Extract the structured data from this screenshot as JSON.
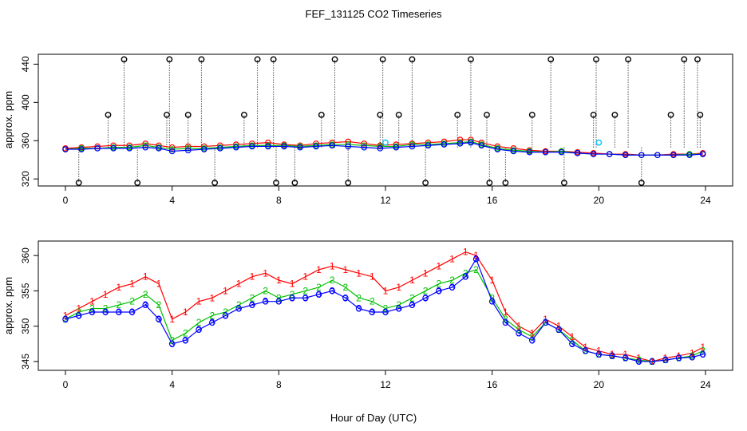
{
  "title": "FEF_131125  CO2 Timeseries",
  "xlabel": "Hour of Day (UTC)",
  "colors": {
    "line1": "#ff0000",
    "line2": "#00c000",
    "line3": "#0000ff",
    "flag": "#000000",
    "cyan": "#00c0ff"
  },
  "chart_data": [
    {
      "type": "scatter",
      "panel": "top",
      "ylabel": "approx. ppm",
      "xlim": [
        0,
        24
      ],
      "ylim": [
        320,
        440
      ],
      "x_ticks": [
        "0",
        "4",
        "8",
        "12",
        "16",
        "20",
        "24"
      ],
      "y_ticks": [
        "320",
        "360",
        "400",
        "440"
      ],
      "series": [
        {
          "key": "level1",
          "x": [
            0.0,
            0.6,
            1.2,
            1.8,
            2.4,
            3.0,
            3.5,
            4.0,
            4.6,
            5.2,
            5.8,
            6.4,
            7.0,
            7.6,
            8.2,
            8.8,
            9.4,
            10.0,
            10.6,
            11.2,
            11.8,
            12.4,
            13.0,
            13.6,
            14.2,
            14.8,
            15.2,
            15.6,
            16.2,
            16.8,
            17.4,
            18.0,
            18.6,
            19.2,
            19.8,
            20.4,
            21.0,
            21.6,
            22.2,
            22.8,
            23.4,
            23.9
          ],
          "y": [
            352,
            353,
            354,
            355,
            355,
            357,
            355,
            353,
            354,
            354,
            355,
            356,
            357,
            358,
            356,
            355,
            357,
            358,
            359,
            357,
            355,
            356,
            357,
            358,
            359,
            361,
            361,
            358,
            354,
            352,
            350,
            349,
            349,
            348,
            347,
            346,
            346,
            345,
            345,
            346,
            346,
            347
          ]
        },
        {
          "key": "level2",
          "x": [
            0.0,
            0.6,
            1.2,
            1.8,
            2.4,
            3.0,
            3.5,
            4.0,
            4.6,
            5.2,
            5.8,
            6.4,
            7.0,
            7.6,
            8.2,
            8.8,
            9.4,
            10.0,
            10.6,
            11.2,
            11.8,
            12.4,
            13.0,
            13.6,
            14.2,
            14.8,
            15.2,
            15.6,
            16.2,
            16.8,
            17.4,
            18.0,
            18.6,
            19.2,
            19.8,
            20.4,
            21.0,
            21.6,
            22.2,
            22.8,
            23.4,
            23.9
          ],
          "y": [
            351,
            352,
            352,
            353,
            353,
            355,
            353,
            351,
            352,
            352,
            353,
            354,
            355,
            355,
            355,
            354,
            355,
            356,
            356,
            355,
            354,
            354,
            356,
            356,
            357,
            358,
            359,
            356,
            352,
            350,
            349,
            348,
            349,
            347,
            346,
            346,
            345,
            345,
            345,
            345,
            346,
            346
          ]
        },
        {
          "key": "level3",
          "x": [
            0.0,
            0.6,
            1.2,
            1.8,
            2.4,
            3.0,
            3.5,
            4.0,
            4.6,
            5.2,
            5.8,
            6.4,
            7.0,
            7.6,
            8.2,
            8.8,
            9.4,
            10.0,
            10.6,
            11.2,
            11.8,
            12.4,
            13.0,
            13.6,
            14.2,
            14.8,
            15.2,
            15.6,
            16.2,
            16.8,
            17.4,
            18.0,
            18.6,
            19.2,
            19.8,
            20.4,
            21.0,
            21.6,
            22.2,
            22.8,
            23.4,
            23.9
          ],
          "y": [
            351,
            351,
            352,
            352,
            352,
            353,
            352,
            349,
            350,
            351,
            352,
            353,
            354,
            354,
            354,
            353,
            354,
            355,
            354,
            353,
            352,
            353,
            354,
            355,
            356,
            357,
            358,
            355,
            351,
            349,
            348,
            348,
            348,
            347,
            346,
            346,
            345,
            345,
            345,
            345,
            345,
            346
          ]
        }
      ],
      "flags": {
        "x": [
          0.5,
          1.6,
          2.2,
          2.7,
          3.8,
          3.9,
          4.6,
          5.1,
          5.6,
          6.7,
          7.2,
          7.8,
          7.9,
          8.6,
          9.6,
          10.1,
          10.6,
          11.8,
          11.9,
          12.5,
          13.0,
          13.5,
          14.7,
          15.2,
          15.8,
          15.9,
          16.5,
          17.5,
          18.2,
          18.7,
          19.8,
          19.9,
          20.6,
          21.1,
          21.6,
          22.7,
          23.2,
          23.7,
          23.8
        ],
        "y": [
          316,
          387,
          445,
          316,
          387,
          445,
          387,
          445,
          316,
          387,
          445,
          445,
          316,
          316,
          387,
          445,
          316,
          387,
          445,
          387,
          445,
          316,
          387,
          445,
          387,
          316,
          316,
          387,
          445,
          316,
          387,
          445,
          387,
          445,
          316,
          387,
          445,
          445,
          387
        ]
      },
      "cyan_points": {
        "x": [
          12.0,
          20.0
        ],
        "y": [
          358,
          358
        ]
      }
    },
    {
      "type": "line",
      "panel": "bottom",
      "ylabel": "approx. ppm",
      "xlim": [
        0,
        24
      ],
      "ylim": [
        345,
        360
      ],
      "x_ticks": [
        "0",
        "4",
        "8",
        "12",
        "16",
        "20",
        "24"
      ],
      "y_ticks": [
        "345",
        "350",
        "355",
        "360"
      ],
      "series": [
        {
          "key": "level1",
          "x": [
            0.0,
            0.5,
            1.0,
            1.5,
            2.0,
            2.5,
            3.0,
            3.5,
            4.0,
            4.5,
            5.0,
            5.5,
            6.0,
            6.5,
            7.0,
            7.5,
            8.0,
            8.5,
            9.0,
            9.5,
            10.0,
            10.5,
            11.0,
            11.5,
            12.0,
            12.5,
            13.0,
            13.5,
            14.0,
            14.5,
            15.0,
            15.4,
            16.0,
            16.5,
            17.0,
            17.5,
            18.0,
            18.5,
            19.0,
            19.5,
            20.0,
            20.5,
            21.0,
            21.5,
            22.0,
            22.5,
            23.0,
            23.5,
            23.9
          ],
          "y": [
            351.5,
            352.5,
            353.5,
            354.5,
            355.5,
            356.0,
            357.0,
            356.0,
            351.0,
            352.0,
            353.5,
            354.0,
            355.0,
            356.0,
            357.0,
            357.5,
            356.5,
            356.0,
            357.0,
            358.0,
            358.5,
            358.0,
            357.5,
            357.0,
            355.0,
            355.5,
            356.5,
            357.5,
            358.5,
            359.5,
            360.5,
            360.0,
            356.5,
            352.0,
            350.0,
            349.0,
            351.0,
            350.0,
            348.5,
            347.0,
            346.5,
            346.0,
            346.0,
            345.5,
            345.0,
            345.5,
            345.8,
            346.2,
            347.0
          ]
        },
        {
          "key": "level2",
          "x": [
            0.0,
            0.5,
            1.0,
            1.5,
            2.0,
            2.5,
            3.0,
            3.5,
            4.0,
            4.5,
            5.0,
            5.5,
            6.0,
            6.5,
            7.0,
            7.5,
            8.0,
            8.5,
            9.0,
            9.5,
            10.0,
            10.5,
            11.0,
            11.5,
            12.0,
            12.5,
            13.0,
            13.5,
            14.0,
            14.5,
            15.0,
            15.4,
            16.0,
            16.5,
            17.0,
            17.5,
            18.0,
            18.5,
            19.0,
            19.5,
            20.0,
            20.5,
            21.0,
            21.5,
            22.0,
            22.5,
            23.0,
            23.5,
            23.9
          ],
          "y": [
            351.0,
            352.0,
            352.5,
            352.5,
            353.0,
            353.5,
            354.5,
            353.0,
            348.0,
            349.0,
            350.5,
            351.5,
            352.0,
            353.0,
            354.0,
            355.0,
            354.0,
            354.5,
            355.0,
            355.5,
            356.5,
            355.5,
            354.0,
            353.5,
            352.5,
            353.0,
            354.0,
            355.0,
            356.0,
            356.5,
            357.5,
            358.0,
            354.0,
            351.0,
            349.5,
            348.5,
            350.5,
            349.5,
            348.0,
            346.5,
            346.0,
            345.8,
            345.5,
            345.2,
            345.0,
            345.2,
            345.5,
            345.8,
            346.5
          ]
        },
        {
          "key": "level3",
          "x": [
            0.0,
            0.5,
            1.0,
            1.5,
            2.0,
            2.5,
            3.0,
            3.5,
            4.0,
            4.5,
            5.0,
            5.5,
            6.0,
            6.5,
            7.0,
            7.5,
            8.0,
            8.5,
            9.0,
            9.5,
            10.0,
            10.5,
            11.0,
            11.5,
            12.0,
            12.5,
            13.0,
            13.5,
            14.0,
            14.5,
            15.0,
            15.4,
            16.0,
            16.5,
            17.0,
            17.5,
            18.0,
            18.5,
            19.0,
            19.5,
            20.0,
            20.5,
            21.0,
            21.5,
            22.0,
            22.5,
            23.0,
            23.5,
            23.9
          ],
          "y": [
            351.0,
            351.5,
            352.0,
            352.0,
            352.0,
            352.0,
            353.0,
            351.0,
            347.5,
            348.0,
            349.5,
            350.5,
            351.5,
            352.5,
            353.0,
            353.5,
            353.5,
            354.0,
            354.0,
            354.5,
            355.0,
            354.0,
            352.5,
            352.0,
            352.0,
            352.5,
            353.0,
            354.0,
            355.0,
            355.5,
            357.0,
            359.5,
            353.5,
            350.5,
            349.0,
            348.0,
            350.5,
            349.5,
            347.5,
            346.5,
            346.0,
            345.8,
            345.5,
            345.0,
            345.0,
            345.2,
            345.5,
            345.6,
            346.0
          ]
        }
      ]
    }
  ]
}
